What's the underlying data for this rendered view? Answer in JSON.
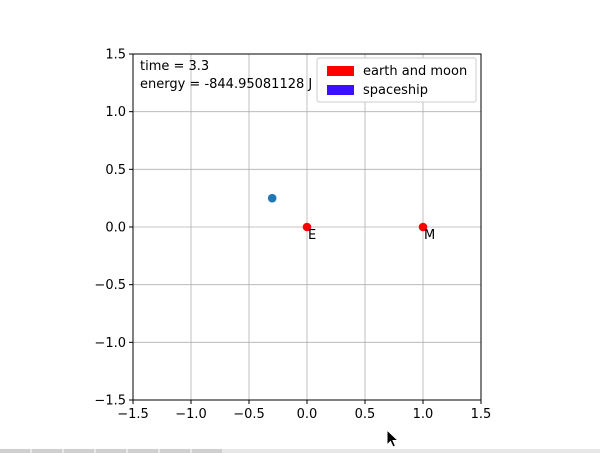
{
  "chart_data": {
    "type": "scatter",
    "xlim": [
      -1.5,
      1.5
    ],
    "ylim": [
      -1.5,
      1.5
    ],
    "x_ticks": [
      -1.5,
      -1.0,
      -0.5,
      0.0,
      0.5,
      1.0,
      1.5
    ],
    "y_ticks": [
      -1.5,
      -1.0,
      -0.5,
      0.0,
      0.5,
      1.0,
      1.5
    ],
    "x_tick_labels": [
      "−1.5",
      "−1.0",
      "−0.5",
      "0.0",
      "0.5",
      "1.0",
      "1.5"
    ],
    "y_tick_labels": [
      "−1.5",
      "−1.0",
      "−0.5",
      "0.0",
      "0.5",
      "1.0",
      "1.5"
    ],
    "grid": true,
    "legend_position": "top-right",
    "time_text": "time = 3.3",
    "energy_text": "energy = -844.95081128 J",
    "series": [
      {
        "name": "earth and moon",
        "color": "#ff0000",
        "points": [
          {
            "x": 0.0,
            "y": 0.0,
            "label": "E"
          },
          {
            "x": 1.0,
            "y": 0.0,
            "label": "M"
          }
        ]
      },
      {
        "name": "spaceship",
        "color": "#3a10ff",
        "marker_color": "#1f77b4",
        "points": [
          {
            "x": -0.3,
            "y": 0.25,
            "label": ""
          }
        ]
      }
    ]
  }
}
